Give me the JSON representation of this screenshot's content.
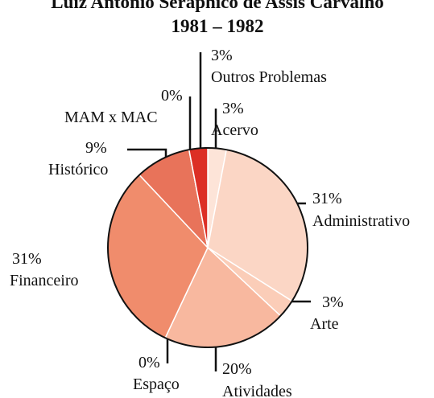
{
  "chart_data": {
    "type": "pie",
    "title": "Luiz Antônio Seraphico de Assis Carvalho",
    "subtitle": "1981 – 1982",
    "categories": [
      "Acervo",
      "Administrativo",
      "Arte",
      "Atividades",
      "Espaço",
      "Financeiro",
      "Histórico",
      "MAM x MAC",
      "Outros Problemas"
    ],
    "values": [
      3,
      31,
      3,
      20,
      0,
      31,
      9,
      0,
      3
    ],
    "value_labels": [
      "3%",
      "31%",
      "3%",
      "20%",
      "0%",
      "31%",
      "9%",
      "0%",
      "3%"
    ],
    "colors": [
      "#fde4d8",
      "#fbd6c5",
      "#fbcdb8",
      "#f8b89f",
      "#f3a083",
      "#f08c6c",
      "#e8735a",
      "#b02a20",
      "#dc2f25"
    ]
  }
}
